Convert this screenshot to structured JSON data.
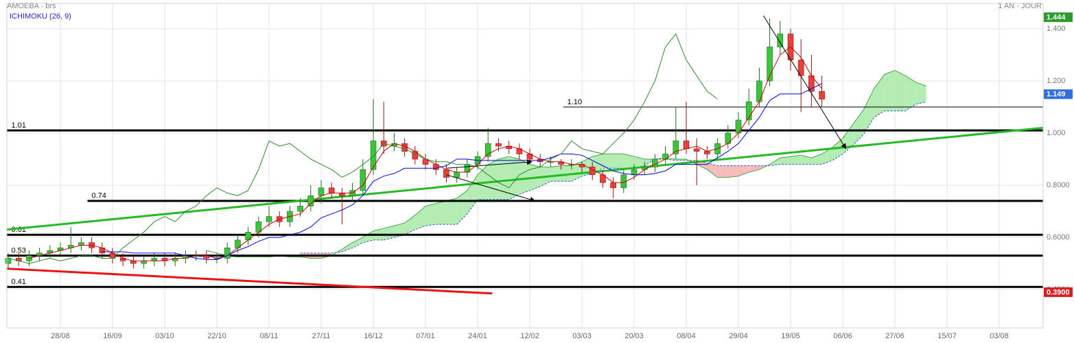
{
  "chart_data": {
    "type": "candlestick",
    "title": "AMOEBA - brs",
    "timeframe": "1 AN - JOUR",
    "categories": [
      null,
      null,
      null,
      null,
      null,
      "28/08",
      null,
      null,
      null,
      null,
      "16/09",
      null,
      null,
      null,
      null,
      "03/10",
      null,
      null,
      null,
      null,
      "22/10",
      null,
      null,
      null,
      null,
      "08/11",
      null,
      null,
      null,
      null,
      "27/11",
      null,
      null,
      null,
      null,
      "16/12",
      null,
      null,
      null,
      null,
      "07/01",
      null,
      null,
      null,
      null,
      "24/01",
      null,
      null,
      null,
      null,
      "12/02",
      null,
      null,
      null,
      null,
      "03/03",
      null,
      null,
      null,
      null,
      "20/03",
      null,
      null,
      null,
      null,
      "08/04",
      null,
      null,
      null,
      null,
      "29/04",
      null,
      null,
      null,
      null,
      "19/05",
      null,
      null,
      null,
      null,
      "06/06",
      null,
      null,
      null,
      null,
      "27/06",
      null,
      null,
      null,
      null,
      "15/07",
      null,
      null,
      null,
      null,
      "03/08",
      null,
      null,
      null,
      null
    ],
    "open": [
      0.5,
      0.52,
      0.51,
      0.53,
      0.54,
      0.55,
      0.56,
      0.57,
      0.58,
      0.56,
      0.54,
      0.52,
      0.51,
      0.5,
      0.51,
      0.52,
      0.51,
      0.52,
      0.53,
      0.53,
      0.52,
      0.52,
      0.56,
      0.59,
      0.62,
      0.66,
      0.68,
      0.66,
      0.7,
      0.72,
      0.76,
      0.79,
      0.77,
      0.76,
      0.78,
      0.86,
      0.97,
      0.95,
      0.96,
      0.93,
      0.9,
      0.88,
      0.86,
      0.83,
      0.85,
      0.88,
      0.91,
      0.96,
      0.95,
      0.94,
      0.92,
      0.9,
      0.89,
      0.89,
      0.88,
      0.88,
      0.87,
      0.84,
      0.81,
      0.79,
      0.84,
      0.86,
      0.87,
      0.9,
      0.92,
      0.97,
      0.94,
      0.93,
      0.92,
      0.96,
      1.0,
      1.05,
      1.12,
      1.2,
      1.33,
      1.38,
      1.28,
      1.22,
      1.16,
      null,
      null,
      null,
      null,
      null,
      null,
      null,
      null,
      null,
      null,
      null,
      null,
      null,
      null,
      null,
      null,
      null,
      null,
      null,
      null,
      null
    ],
    "high": [
      0.54,
      0.54,
      0.55,
      0.56,
      0.57,
      0.58,
      0.64,
      0.6,
      0.6,
      0.58,
      0.56,
      0.54,
      0.53,
      0.53,
      0.54,
      0.54,
      0.54,
      0.55,
      0.55,
      0.55,
      0.54,
      0.58,
      0.61,
      0.64,
      0.68,
      0.72,
      0.7,
      0.72,
      0.75,
      0.8,
      0.82,
      0.81,
      0.79,
      0.81,
      0.9,
      1.13,
      1.12,
      1.0,
      0.98,
      0.95,
      0.92,
      0.9,
      0.88,
      0.87,
      0.9,
      0.93,
      1.02,
      0.98,
      0.97,
      0.96,
      0.94,
      0.92,
      0.91,
      0.9,
      0.9,
      0.89,
      0.89,
      0.86,
      0.83,
      0.86,
      0.88,
      0.89,
      0.92,
      0.95,
      1.1,
      1.12,
      0.98,
      0.95,
      0.98,
      1.03,
      1.08,
      1.17,
      1.25,
      1.44,
      1.43,
      1.4,
      1.36,
      1.3,
      1.22,
      null,
      null,
      null,
      null,
      null,
      null,
      null,
      null,
      null,
      null,
      null,
      null,
      null,
      null,
      null,
      null,
      null,
      null,
      null,
      null,
      null
    ],
    "low": [
      0.48,
      0.49,
      0.49,
      0.51,
      0.52,
      0.53,
      0.54,
      0.55,
      0.54,
      0.52,
      0.5,
      0.49,
      0.48,
      0.48,
      0.49,
      0.49,
      0.49,
      0.5,
      0.51,
      0.5,
      0.5,
      0.5,
      0.54,
      0.57,
      0.6,
      0.64,
      0.64,
      0.64,
      0.68,
      0.7,
      0.73,
      0.75,
      0.65,
      0.74,
      0.76,
      0.84,
      0.92,
      0.93,
      0.91,
      0.88,
      0.86,
      0.84,
      0.81,
      0.81,
      0.83,
      0.86,
      0.89,
      0.93,
      0.92,
      0.9,
      0.88,
      0.87,
      0.87,
      0.86,
      0.86,
      0.85,
      0.82,
      0.79,
      0.75,
      0.77,
      0.82,
      0.84,
      0.85,
      0.88,
      0.9,
      0.92,
      0.8,
      0.9,
      0.9,
      0.94,
      0.98,
      1.03,
      1.1,
      1.18,
      1.3,
      1.24,
      1.08,
      1.1,
      1.1,
      null,
      null,
      null,
      null,
      null,
      null,
      null,
      null,
      null,
      null,
      null,
      null,
      null,
      null,
      null,
      null,
      null,
      null,
      null,
      null,
      null
    ],
    "close": [
      0.52,
      0.51,
      0.53,
      0.54,
      0.55,
      0.56,
      0.57,
      0.58,
      0.56,
      0.54,
      0.52,
      0.51,
      0.5,
      0.51,
      0.52,
      0.51,
      0.52,
      0.53,
      0.53,
      0.52,
      0.52,
      0.56,
      0.59,
      0.62,
      0.66,
      0.68,
      0.66,
      0.7,
      0.72,
      0.76,
      0.79,
      0.77,
      0.76,
      0.78,
      0.86,
      0.97,
      0.95,
      0.96,
      0.93,
      0.9,
      0.88,
      0.86,
      0.83,
      0.85,
      0.88,
      0.91,
      0.96,
      0.95,
      0.94,
      0.92,
      0.9,
      0.89,
      0.89,
      0.88,
      0.88,
      0.87,
      0.84,
      0.81,
      0.79,
      0.84,
      0.86,
      0.87,
      0.9,
      0.92,
      0.97,
      0.94,
      0.93,
      0.92,
      0.96,
      1.0,
      1.05,
      1.12,
      1.2,
      1.33,
      1.38,
      1.28,
      1.22,
      1.16,
      1.13,
      null,
      null,
      null,
      null,
      null,
      null,
      null,
      null,
      null,
      null,
      null,
      null,
      null,
      null,
      null,
      null,
      null,
      null,
      null,
      null,
      null
    ],
    "up_color": "#3cc43c",
    "down_color": "#e8413c",
    "indicator": {
      "label": "ICHIMOKU (26, 9)",
      "color": "#2222cc",
      "lines": [
        {
          "color": "#cc0000",
          "values": [
            null,
            null,
            0.52,
            0.53,
            0.54,
            0.55,
            0.56,
            0.57,
            0.57,
            0.56,
            0.54,
            0.52,
            0.51,
            0.51,
            0.51,
            0.51,
            0.52,
            0.52,
            0.53,
            0.53,
            0.52,
            0.53,
            0.56,
            0.59,
            0.62,
            0.65,
            0.67,
            0.68,
            0.69,
            0.73,
            0.76,
            0.77,
            0.77,
            0.77,
            0.8,
            0.87,
            0.93,
            0.96,
            0.95,
            0.93,
            0.9,
            0.88,
            0.86,
            0.85,
            0.85,
            0.88,
            0.92,
            0.94,
            0.95,
            0.94,
            0.92,
            0.9,
            0.89,
            0.89,
            0.88,
            0.88,
            0.86,
            0.84,
            0.81,
            0.81,
            0.83,
            0.86,
            0.88,
            0.9,
            0.93,
            0.94,
            0.95,
            0.93,
            0.94,
            0.96,
            1.0,
            1.06,
            1.12,
            1.22,
            1.3,
            1.33,
            1.29,
            1.22,
            1.17,
            null,
            null,
            null,
            null,
            null,
            null,
            null,
            null,
            null,
            null,
            null,
            null,
            null,
            null,
            null,
            null,
            null,
            null,
            null,
            null,
            null
          ]
        },
        {
          "color": "#0000dd",
          "values": [
            null,
            null,
            null,
            null,
            null,
            null,
            null,
            null,
            null,
            0.545,
            0.545,
            0.545,
            0.54,
            0.54,
            0.54,
            0.54,
            0.54,
            0.53,
            0.52,
            0.515,
            0.515,
            0.53,
            0.55,
            0.565,
            0.585,
            0.6,
            0.6,
            0.61,
            0.62,
            0.64,
            0.675,
            0.69,
            0.705,
            0.725,
            0.76,
            0.815,
            0.835,
            0.845,
            0.865,
            0.865,
            0.865,
            0.865,
            0.875,
            0.9,
            0.9,
            0.895,
            0.895,
            0.895,
            0.895,
            0.895,
            0.895,
            0.895,
            0.905,
            0.92,
            0.92,
            0.915,
            0.895,
            0.875,
            0.855,
            0.845,
            0.84,
            0.84,
            0.845,
            0.855,
            0.88,
            0.88,
            0.88,
            0.88,
            0.905,
            0.93,
            0.96,
            1.01,
            1.06,
            1.125,
            1.15,
            1.15,
            1.15,
            1.17,
            1.19,
            null,
            null,
            null,
            null,
            null,
            null,
            null,
            null,
            null,
            null,
            null,
            null,
            null,
            null,
            null,
            null,
            null,
            null,
            null,
            null,
            null
          ]
        },
        {
          "color": "#2a8a2a",
          "values": [
            0.52,
            0.51,
            0.5,
            0.51,
            0.52,
            0.51,
            0.52,
            0.53,
            0.53,
            0.52,
            0.52,
            0.56,
            0.59,
            0.62,
            0.66,
            0.68,
            0.66,
            0.7,
            0.72,
            0.76,
            0.79,
            0.77,
            0.76,
            0.78,
            0.86,
            0.97,
            0.95,
            0.96,
            0.93,
            0.9,
            0.88,
            0.86,
            0.83,
            0.85,
            0.88,
            0.91,
            0.96,
            0.95,
            0.94,
            0.92,
            0.9,
            0.89,
            0.89,
            0.88,
            0.88,
            0.87,
            0.84,
            0.81,
            0.79,
            0.84,
            0.86,
            0.87,
            0.9,
            0.92,
            0.97,
            0.94,
            0.93,
            0.92,
            0.96,
            1.0,
            1.05,
            1.12,
            1.2,
            1.33,
            1.38,
            1.28,
            1.22,
            1.16,
            1.13,
            null,
            null,
            null,
            null,
            null,
            null,
            null,
            null,
            null,
            null,
            null,
            null,
            null,
            null,
            null,
            null,
            null,
            null,
            null,
            null,
            null,
            null,
            null,
            null,
            null,
            null,
            null,
            null,
            null,
            null,
            null
          ]
        }
      ],
      "cloud": {
        "span_a": [
          null,
          null,
          null,
          null,
          null,
          null,
          null,
          null,
          null,
          null,
          null,
          null,
          null,
          null,
          null,
          null,
          null,
          null,
          null,
          0.55,
          0.54,
          0.53,
          0.525,
          0.525,
          0.525,
          0.525,
          0.53,
          0.525,
          0.525,
          0.52,
          0.52,
          0.53,
          0.555,
          0.58,
          0.6,
          0.625,
          0.635,
          0.645,
          0.655,
          0.685,
          0.72,
          0.73,
          0.74,
          0.75,
          0.78,
          0.84,
          0.88,
          0.9,
          0.91,
          0.9,
          0.88,
          0.87,
          0.87,
          0.875,
          0.875,
          0.89,
          0.91,
          0.92,
          0.92,
          0.92,
          0.91,
          0.9,
          0.9,
          0.905,
          0.9,
          0.9,
          0.88,
          0.86,
          0.83,
          0.83,
          0.835,
          0.85,
          0.86,
          0.88,
          0.905,
          0.91,
          0.915,
          0.905,
          0.92,
          0.945,
          0.98,
          1.035,
          1.09,
          1.17,
          1.225,
          1.24,
          1.22,
          1.195,
          1.18,
          null,
          null,
          null,
          null,
          null,
          null,
          null,
          null,
          null,
          null,
          null
        ],
        "span_b": [
          null,
          null,
          null,
          null,
          null,
          null,
          null,
          null,
          null,
          null,
          null,
          null,
          null,
          null,
          null,
          null,
          null,
          null,
          null,
          null,
          null,
          null,
          null,
          null,
          null,
          null,
          null,
          null,
          0.54,
          0.54,
          0.54,
          0.54,
          0.545,
          0.56,
          0.58,
          0.59,
          0.59,
          0.6,
          0.61,
          0.63,
          0.645,
          0.65,
          0.65,
          0.65,
          0.69,
          0.745,
          0.745,
          0.745,
          0.745,
          0.765,
          0.78,
          0.795,
          0.815,
          0.815,
          0.815,
          0.835,
          0.845,
          0.865,
          0.865,
          0.865,
          0.865,
          0.875,
          0.9,
          0.9,
          0.895,
          0.895,
          0.895,
          0.885,
          0.875,
          0.875,
          0.875,
          0.875,
          0.875,
          0.875,
          0.88,
          0.88,
          0.88,
          0.88,
          0.88,
          0.895,
          0.92,
          0.955,
          0.995,
          1.06,
          1.085,
          1.085,
          1.085,
          1.11,
          1.12,
          null,
          null,
          null,
          null,
          null,
          null,
          null,
          null,
          null,
          null,
          null
        ],
        "span_a_color": "#44aa44",
        "span_b_color": "#3355cc",
        "up_fill": "#a6eaa6",
        "down_fill": "#f8b0b0"
      }
    },
    "levels": [
      {
        "value": 1.01,
        "start": -0.1,
        "width": 3
      },
      {
        "value": 1.1,
        "label": "1.10",
        "start": 53.2,
        "width": 1
      },
      {
        "value": 0.74,
        "start": 7.6,
        "width": 3
      },
      {
        "value": 0.61,
        "start": -0.1,
        "width": 3
      },
      {
        "value": 0.53,
        "start": -0.1,
        "width": 3
      },
      {
        "value": 0.41,
        "start": -0.1,
        "width": 3
      }
    ],
    "trendlines": [
      {
        "color": "#22bb22",
        "from": [
          -0.1,
          0.63
        ],
        "to": [
          99.2,
          1.02
        ]
      },
      {
        "color": "#ee1111",
        "from": [
          -0.1,
          0.48
        ],
        "to": [
          46.4,
          0.385
        ]
      }
    ],
    "arrows": [
      {
        "from": [
          42,
          0.865
        ],
        "to": [
          50.2,
          0.89
        ]
      },
      {
        "from": [
          42,
          0.84
        ],
        "to": [
          50.5,
          0.74
        ]
      },
      {
        "from": [
          72.4,
          1.45
        ],
        "to": [
          80.3,
          0.94
        ]
      }
    ],
    "price_tags": [
      {
        "value": 1.444,
        "color": "#2e9b2e"
      },
      {
        "value": 1.149,
        "color": "#2f6fe0"
      },
      {
        "value": 0.39,
        "label": "0.3900",
        "color": "#d42020"
      }
    ],
    "ylim": [
      0.253,
      1.497
    ],
    "yticks": [
      {
        "value": 0.4,
        "label": "0.4000"
      },
      {
        "value": 0.6,
        "label": "0.6000"
      },
      {
        "value": 0.8,
        "label": "0.8000"
      },
      {
        "value": 1.0,
        "label": "1.000"
      },
      {
        "value": 1.2,
        "label": "1.200"
      },
      {
        "value": 1.4,
        "label": "1.400"
      }
    ],
    "grid": true
  }
}
